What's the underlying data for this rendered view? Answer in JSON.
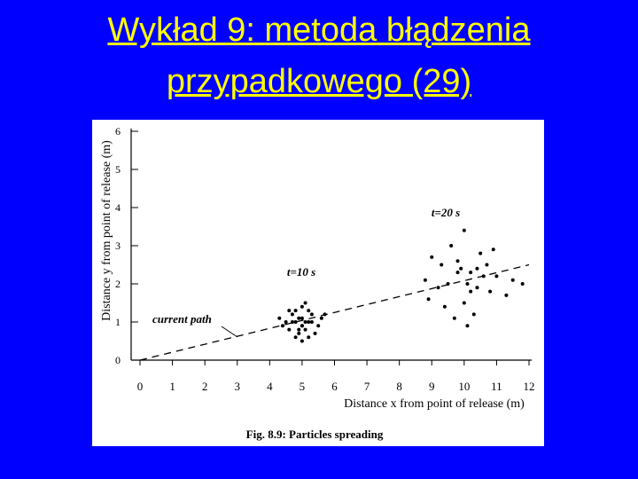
{
  "slide": {
    "title_line1": "Wykład 9: metoda błądzenia",
    "title_line2": "przypadkowego (29)"
  },
  "chart_data": {
    "type": "scatter",
    "caption": "Fig. 8.9: Particles spreading",
    "x_label": "Distance x from point of release (m)",
    "y_label": "Distance y from point of release (m)",
    "xlim": [
      0,
      12
    ],
    "ylim": [
      0,
      6
    ],
    "xticks": [
      0,
      1,
      2,
      3,
      4,
      5,
      6,
      7,
      8,
      9,
      10,
      11,
      12
    ],
    "yticks": [
      0,
      1,
      2,
      3,
      4,
      5,
      6
    ],
    "grid": false,
    "series": [
      {
        "name": "t=10 s",
        "color": "#000000",
        "x": [
          4.7,
          5.1,
          5.3,
          4.9,
          5.0,
          4.6,
          5.4,
          5.2,
          4.8,
          5.0,
          4.5,
          5.6,
          4.9,
          5.1,
          4.4,
          5.3,
          5.0,
          4.7,
          5.5,
          4.8,
          5.2,
          4.9,
          5.0,
          4.6,
          5.1,
          4.3,
          5.7,
          5.0,
          4.8,
          5.2
        ],
        "values": [
          1.0,
          0.8,
          1.2,
          1.1,
          0.9,
          1.3,
          0.7,
          1.0,
          0.6,
          1.4,
          1.0,
          1.1,
          0.8,
          1.5,
          0.9,
          1.0,
          0.5,
          1.2,
          0.9,
          1.0,
          1.3,
          0.7,
          1.1,
          0.8,
          1.0,
          1.1,
          1.2,
          0.9,
          1.3,
          0.6
        ]
      },
      {
        "name": "t=20 s",
        "color": "#000000",
        "x": [
          9.5,
          10.2,
          10.8,
          9.8,
          10.0,
          11.0,
          9.2,
          10.5,
          9.9,
          10.3,
          8.8,
          11.3,
          9.6,
          10.1,
          10.7,
          9.4,
          10.4,
          9.0,
          11.5,
          10.0,
          9.7,
          10.6,
          10.2,
          9.3,
          10.9,
          9.8,
          10.1,
          11.8,
          8.9,
          10.4
        ],
        "values": [
          2.0,
          2.3,
          1.8,
          2.6,
          1.5,
          2.2,
          1.9,
          2.8,
          2.4,
          1.2,
          2.1,
          1.7,
          3.0,
          2.0,
          2.5,
          1.4,
          1.9,
          2.7,
          2.1,
          3.4,
          1.1,
          2.2,
          1.8,
          2.5,
          2.9,
          2.3,
          0.9,
          2.0,
          1.6,
          2.4
        ]
      },
      {
        "name": "current path",
        "color": "#000000",
        "dashed": true,
        "x": [
          0,
          12
        ],
        "values": [
          0,
          2.5
        ]
      }
    ]
  }
}
